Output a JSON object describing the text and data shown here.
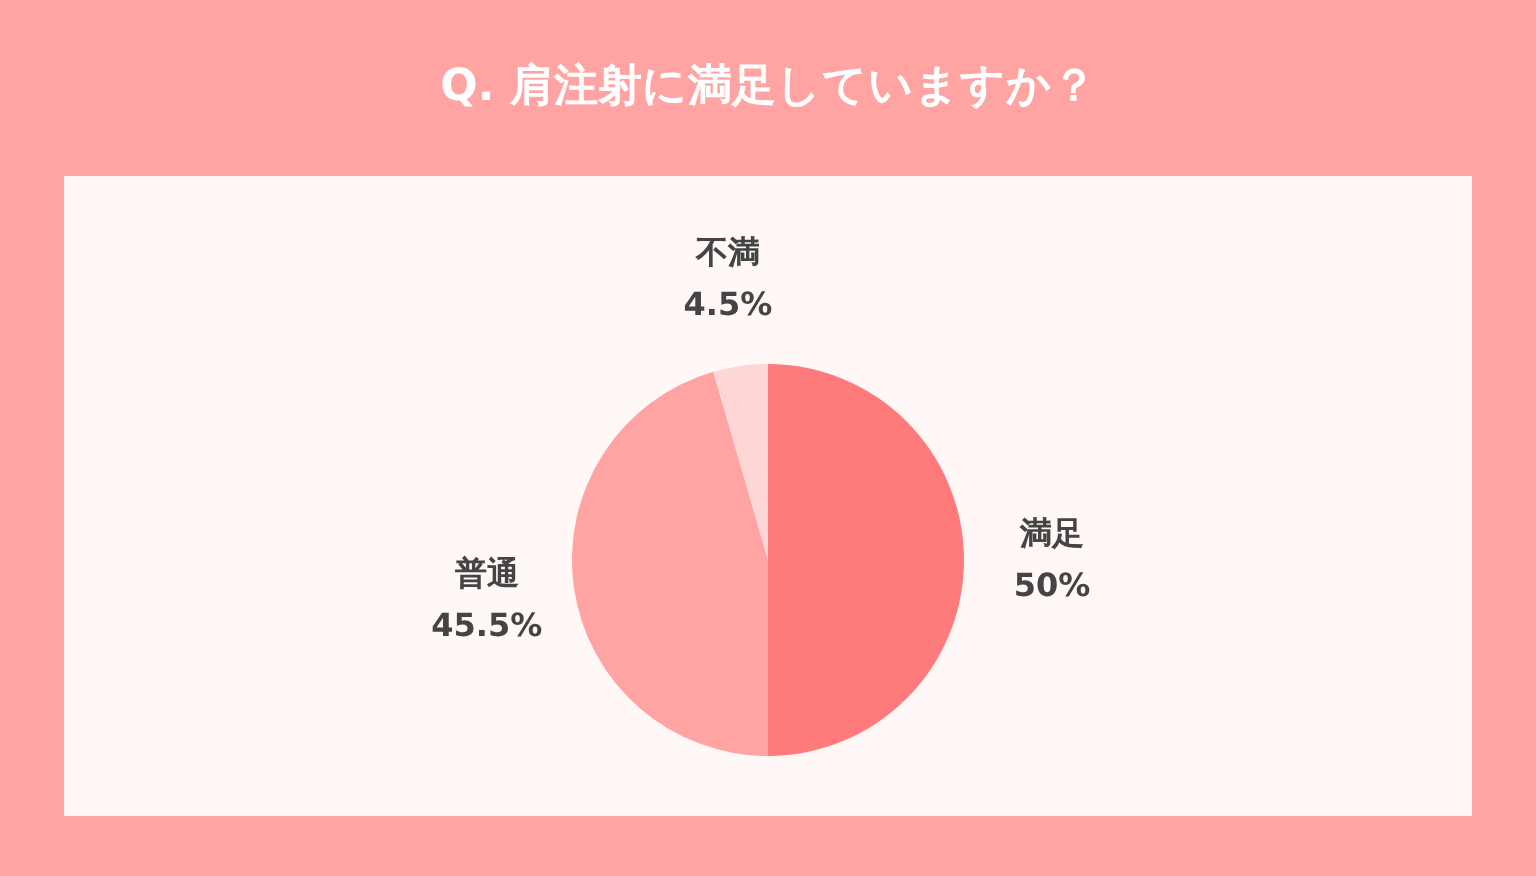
{
  "chart_data": {
    "type": "pie",
    "title": "Q. 肩注射に満足していますか？",
    "categories": [
      "満足",
      "普通",
      "不満"
    ],
    "values": [
      50,
      45.5,
      4.5
    ],
    "value_labels": [
      "50%",
      "45.5%",
      "4.5%"
    ],
    "colors": [
      "#ff7b7b",
      "#ffa3a3",
      "#ffd6d6"
    ],
    "legend": false
  }
}
